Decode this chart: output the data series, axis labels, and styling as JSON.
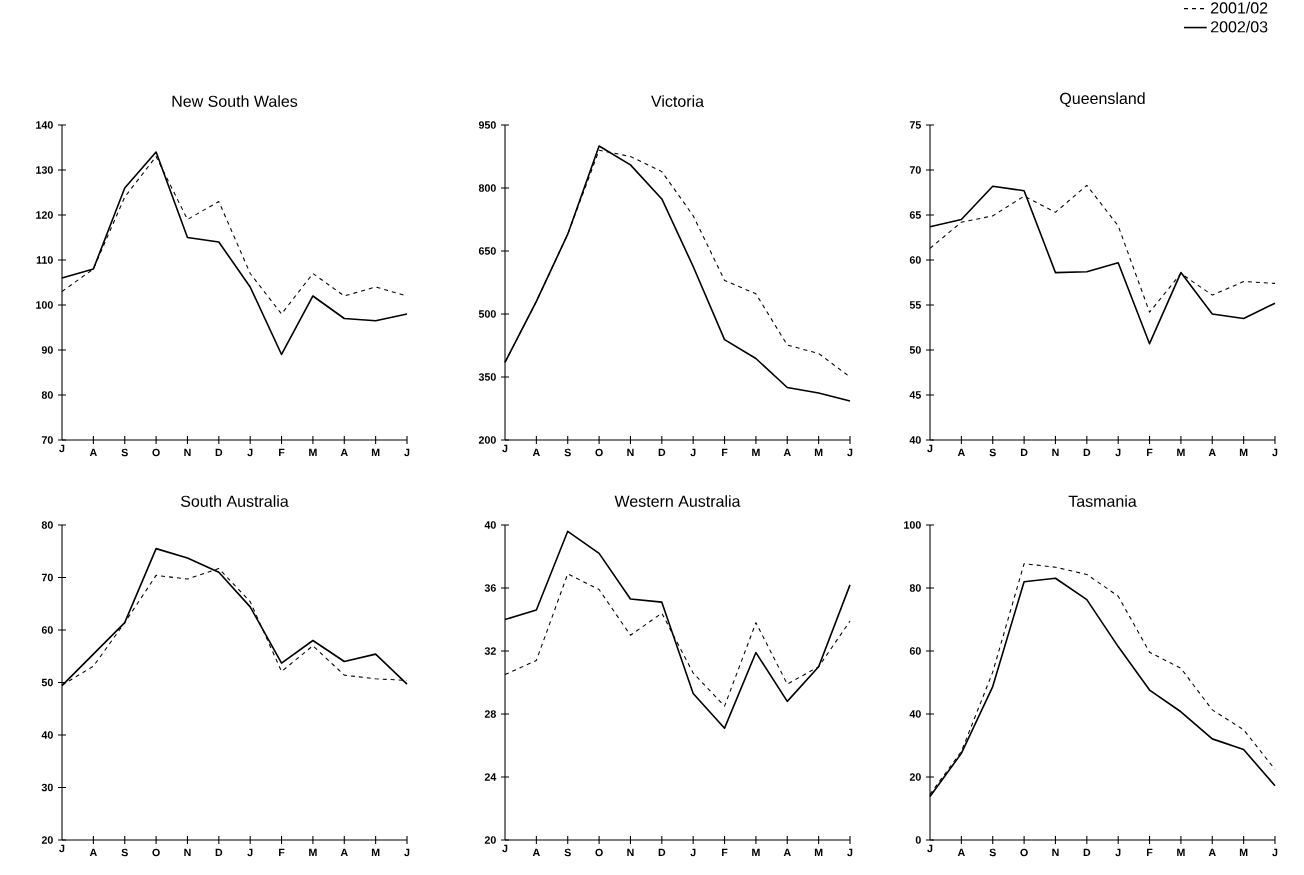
{
  "chart_data": [
    {
      "type": "line",
      "title": "New South Wales",
      "categories": [
        "J",
        "A",
        "S",
        "O",
        "N",
        "D",
        "J",
        "F",
        "M",
        "A",
        "M",
        "J"
      ],
      "ylim": [
        70,
        140
      ],
      "yticks": [
        70,
        80,
        90,
        100,
        110,
        120,
        130,
        140
      ],
      "series": [
        {
          "color": "#000000",
          "line_style": "dashed",
          "values": [
            103,
            108,
            124,
            133,
            119,
            123,
            107,
            98,
            107,
            102,
            104,
            102
          ]
        },
        {
          "color": "#000000",
          "line_style": "solid",
          "values": [
            106,
            108,
            126,
            134,
            115,
            114,
            104,
            89,
            102,
            97,
            96.5,
            98
          ]
        }
      ]
    },
    {
      "type": "line",
      "title": "Victoria",
      "categories": [
        "J",
        "A",
        "S",
        "O",
        "N",
        "D",
        "J",
        "F",
        "M",
        "A",
        "M",
        "J"
      ],
      "ylim": [
        200,
        950
      ],
      "yticks": [
        200,
        350,
        500,
        650,
        800,
        950
      ],
      "series": [
        {
          "color": "#000000",
          "line_style": "dashed",
          "values": [
            385,
            530,
            690,
            890,
            875,
            839,
            734,
            580,
            548,
            426,
            406,
            350
          ]
        },
        {
          "color": "#000000",
          "line_style": "solid",
          "values": [
            385,
            530,
            690,
            900,
            855,
            774,
            613,
            439,
            394,
            325,
            312,
            293
          ]
        }
      ]
    },
    {
      "type": "line",
      "title": "Queensland",
      "categories": [
        "J",
        "A",
        "S",
        "D",
        "N",
        "D",
        "J",
        "F",
        "M",
        "A",
        "M",
        "J"
      ],
      "ylim": [
        40,
        75
      ],
      "yticks": [
        40,
        45,
        50,
        55,
        60,
        65,
        70,
        75
      ],
      "legend": "top right",
      "series": [
        {
          "name": "2001/02",
          "color": "#000000",
          "line_style": "dashed",
          "values": [
            61.3,
            64.2,
            64.9,
            67.1,
            65.3,
            68.3,
            63.8,
            54.2,
            58.5,
            56.1,
            57.6,
            57.4
          ]
        },
        {
          "name": "2002/03",
          "color": "#000000",
          "line_style": "solid",
          "values": [
            63.7,
            64.5,
            68.2,
            67.7,
            58.6,
            58.7,
            59.7,
            50.7,
            58.6,
            54.0,
            53.5,
            55.2
          ]
        }
      ]
    },
    {
      "type": "line",
      "title": "South Australia",
      "categories": [
        "J",
        "A",
        "S",
        "O",
        "N",
        "D",
        "J",
        "F",
        "M",
        "A",
        "M",
        "J"
      ],
      "ylim": [
        20,
        80
      ],
      "yticks": [
        20,
        30,
        40,
        50,
        60,
        70,
        80
      ],
      "series": [
        {
          "color": "#000000",
          "line_style": "dashed",
          "values": [
            49.5,
            53.1,
            61.4,
            70.4,
            69.7,
            71.7,
            65.4,
            52.1,
            57.0,
            51.4,
            50.7,
            50.4
          ]
        },
        {
          "color": "#000000",
          "line_style": "solid",
          "values": [
            49.4,
            55.4,
            61.4,
            75.5,
            73.7,
            71.0,
            64.4,
            53.7,
            58.0,
            54.0,
            55.4,
            49.7
          ]
        }
      ]
    },
    {
      "type": "line",
      "title": "Western Australia",
      "categories": [
        "J",
        "A",
        "S",
        "O",
        "N",
        "D",
        "J",
        "F",
        "M",
        "A",
        "M",
        "J"
      ],
      "ylim": [
        20,
        40
      ],
      "yticks": [
        20,
        24,
        28,
        32,
        36,
        40
      ],
      "series": [
        {
          "color": "#000000",
          "line_style": "dashed",
          "values": [
            30.5,
            31.4,
            36.9,
            35.9,
            33.0,
            34.4,
            30.6,
            28.5,
            33.8,
            29.9,
            31.0,
            33.9
          ]
        },
        {
          "color": "#000000",
          "line_style": "solid",
          "values": [
            34.0,
            34.6,
            39.6,
            38.2,
            35.3,
            35.1,
            29.3,
            27.1,
            31.9,
            28.8,
            31.0,
            36.2
          ]
        }
      ]
    },
    {
      "type": "line",
      "title": "Tasmania",
      "categories": [
        "J",
        "A",
        "S",
        "O",
        "N",
        "D",
        "J",
        "F",
        "M",
        "A",
        "M",
        "J"
      ],
      "ylim": [
        0,
        100
      ],
      "yticks": [
        0,
        20,
        40,
        60,
        80,
        100
      ],
      "series": [
        {
          "color": "#000000",
          "line_style": "dashed",
          "values": [
            14.5,
            28.1,
            53.3,
            87.7,
            86.6,
            84.3,
            77.4,
            59.6,
            54.5,
            41.3,
            35.0,
            22.4
          ]
        },
        {
          "color": "#000000",
          "line_style": "solid",
          "values": [
            13.8,
            27.5,
            48.7,
            82.0,
            83.1,
            76.3,
            61.4,
            47.6,
            40.7,
            32.1,
            28.7,
            17.2
          ]
        }
      ]
    }
  ]
}
